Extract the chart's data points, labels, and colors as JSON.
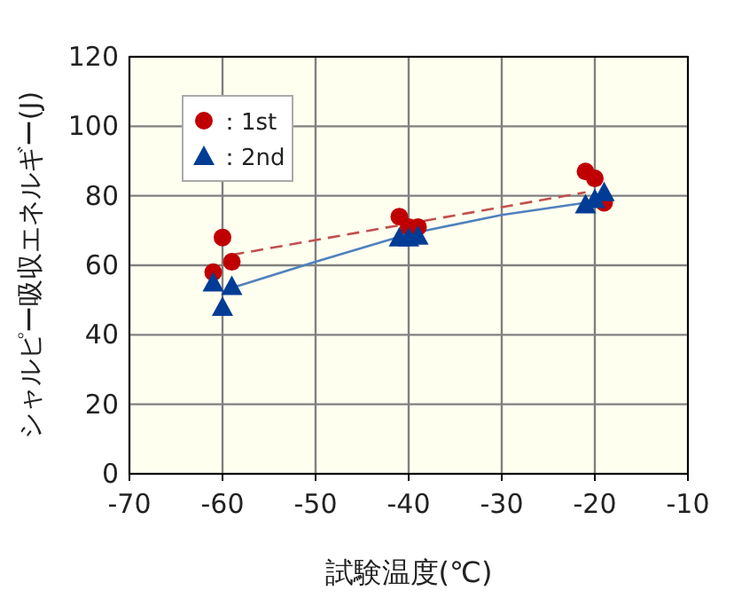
{
  "chart_data": {
    "type": "scatter",
    "xlabel": "試験温度(℃)",
    "ylabel": "シャルピー吸収エネルギー(J)",
    "xlim": [
      -70,
      -10
    ],
    "ylim": [
      0,
      120
    ],
    "xticks": [
      -70,
      -60,
      -50,
      -40,
      -30,
      -20,
      -10
    ],
    "yticks": [
      0,
      20,
      40,
      60,
      80,
      100,
      120
    ],
    "grid": true,
    "legend": "top left",
    "series": [
      {
        "name": "：1st",
        "marker": "circle",
        "color": "#c00000",
        "x": [
          -61,
          -60,
          -59,
          -41,
          -40,
          -39,
          -21,
          -20,
          -19
        ],
        "values": [
          58,
          68,
          61,
          74,
          71,
          71,
          87,
          85,
          78
        ]
      },
      {
        "name": "：2nd",
        "marker": "triangle",
        "color": "#003c96",
        "x": [
          -61,
          -60,
          -59,
          -41,
          -40,
          -39,
          -21,
          -20,
          -19
        ],
        "values": [
          55,
          48,
          54,
          68,
          68,
          68.5,
          77.5,
          79,
          81
        ]
      },
      {
        "type": "line",
        "marker": "none",
        "line_style": "dashed",
        "color": "#c0504d",
        "x": [
          -59,
          -21
        ],
        "values": [
          63,
          81
        ]
      },
      {
        "type": "line",
        "marker": "none",
        "line_style": "solid",
        "color": "#4f81bd",
        "x": [
          -59,
          -50,
          -40,
          -30,
          -21
        ],
        "values": [
          53.5,
          61,
          69,
          74.5,
          78
        ]
      }
    ]
  }
}
